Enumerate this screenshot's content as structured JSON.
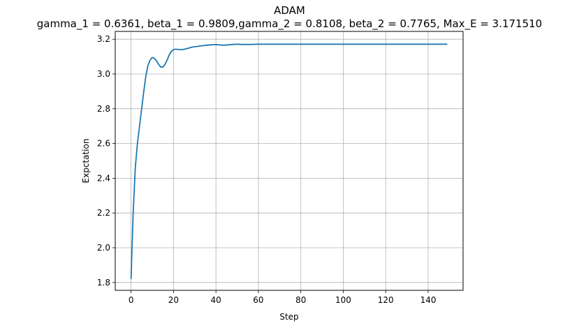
{
  "chart_data": {
    "type": "line",
    "title": "ADAM",
    "subtitle": "gamma_1 = 0.6361, beta_1 = 0.9809,gamma_2 = 0.8108, beta_2 = 0.7765, Max_E = 3.171510",
    "xlabel": "Step",
    "ylabel": "Expctation",
    "xlim": [
      -7.45,
      156.45
    ],
    "ylim": [
      1.755,
      3.245
    ],
    "xticks": [
      0,
      20,
      40,
      60,
      80,
      100,
      120,
      140
    ],
    "xtick_labels": [
      "0",
      "20",
      "40",
      "60",
      "80",
      "100",
      "120",
      "140"
    ],
    "yticks": [
      1.8,
      2.0,
      2.2,
      2.4,
      2.6,
      2.8,
      3.0,
      3.2
    ],
    "ytick_labels": [
      "1.8",
      "2.0",
      "2.2",
      "2.4",
      "2.6",
      "2.8",
      "3.0",
      "3.2"
    ],
    "grid": true,
    "line_color": "#1f77b4",
    "grid_color": "#b0b0b0",
    "series": [
      {
        "x": [
          0,
          1,
          2,
          3,
          4,
          5,
          6,
          7,
          8,
          9,
          10,
          11,
          12,
          13,
          14,
          15,
          16,
          17,
          18,
          19,
          20,
          21,
          22,
          23,
          24,
          25,
          26,
          27,
          28,
          29,
          30,
          31,
          32,
          33,
          34,
          35,
          36,
          37,
          38,
          39,
          40,
          41,
          42,
          43,
          44,
          45,
          46,
          47,
          48,
          49,
          50,
          51,
          52,
          53,
          54,
          55,
          56,
          57,
          58,
          59,
          60,
          65,
          70,
          75,
          80,
          85,
          90,
          95,
          100,
          105,
          110,
          115,
          120,
          125,
          130,
          135,
          140,
          145,
          149
        ],
        "values": [
          1.82,
          2.2,
          2.46,
          2.6,
          2.7,
          2.8,
          2.9,
          2.99,
          3.05,
          3.08,
          3.095,
          3.09,
          3.075,
          3.055,
          3.04,
          3.04,
          3.055,
          3.08,
          3.11,
          3.13,
          3.14,
          3.143,
          3.141,
          3.14,
          3.14,
          3.142,
          3.145,
          3.148,
          3.152,
          3.155,
          3.157,
          3.158,
          3.16,
          3.162,
          3.163,
          3.165,
          3.166,
          3.167,
          3.168,
          3.169,
          3.169,
          3.168,
          3.167,
          3.166,
          3.166,
          3.167,
          3.168,
          3.169,
          3.17,
          3.171,
          3.171,
          3.171,
          3.17,
          3.17,
          3.17,
          3.17,
          3.17,
          3.17,
          3.171,
          3.171,
          3.1715,
          3.1715,
          3.1715,
          3.1715,
          3.1715,
          3.1715,
          3.1715,
          3.1715,
          3.1715,
          3.1715,
          3.1715,
          3.1715,
          3.1715,
          3.1715,
          3.1715,
          3.1715,
          3.1715,
          3.1715,
          3.1715
        ]
      }
    ]
  }
}
